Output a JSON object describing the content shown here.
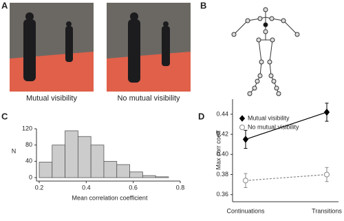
{
  "panel_labels": [
    "A",
    "B",
    "C",
    "D"
  ],
  "captions": [
    "Mutual visibility",
    "No mutual visibility"
  ],
  "chart_data": [
    {
      "type": "histogram",
      "bins": [
        0.2,
        0.255,
        0.31,
        0.365,
        0.42,
        0.475,
        0.53,
        0.585,
        0.64,
        0.695,
        0.75
      ],
      "values": [
        38,
        80,
        115,
        101,
        80,
        40,
        32,
        14,
        5,
        2
      ],
      "color": "#cccccc",
      "xlim": [
        0.2,
        0.8
      ],
      "xticks": [
        0.2,
        0.4,
        0.6,
        0.8
      ],
      "ylim": [
        0,
        120
      ],
      "yticks": [
        0,
        40,
        80,
        120
      ],
      "xlabel": "Mean correlation coefficient",
      "ylabel": "N"
    },
    {
      "type": "line",
      "categories": [
        "Continuations",
        "Transitions"
      ],
      "series": [
        {
          "name": "Mutual visibility",
          "color": "#000000",
          "fill": "#000000",
          "dashed": false,
          "values": [
            0.415,
            0.442
          ],
          "errors": [
            0.009,
            0.009
          ]
        },
        {
          "name": "No mutual visibility",
          "color": "#888888",
          "fill": "#ffffff",
          "dashed": true,
          "values": [
            0.374,
            0.38
          ],
          "errors": [
            0.007,
            0.007
          ]
        }
      ],
      "ylim": [
        0.355,
        0.455
      ],
      "yticks": [
        0.36,
        0.38,
        {
          "value": 0.4,
          "label": "0.40"
        },
        0.42,
        0.44
      ],
      "ylabel": "Max corr coeff",
      "legend": "upper-left"
    }
  ]
}
